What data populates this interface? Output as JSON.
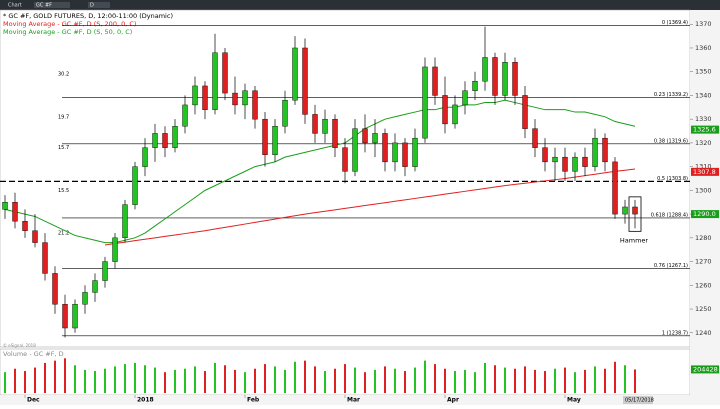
{
  "toolbar": {
    "tab": "Chart",
    "symbol": "GC #F",
    "interval": "D"
  },
  "chart_data": {
    "type": "candlestick",
    "title": "* GC #F, GOLD FUTURES, D, 12:00-11:00 (Dynamic)",
    "ylim": [
      1234,
      1376
    ],
    "yticks": [
      1240,
      1250,
      1260,
      1270,
      1280,
      1290,
      1300,
      1310,
      1320,
      1330,
      1340,
      1350,
      1360,
      1370
    ],
    "candles": [
      [
        1292,
        1298,
        1288,
        1295
      ],
      [
        1295,
        1299,
        1284,
        1287
      ],
      [
        1287,
        1292,
        1280,
        1283
      ],
      [
        1283,
        1290,
        1276,
        1278
      ],
      [
        1278,
        1282,
        1262,
        1265
      ],
      [
        1265,
        1268,
        1248,
        1252
      ],
      [
        1252,
        1256,
        1238,
        1242
      ],
      [
        1242,
        1254,
        1240,
        1252
      ],
      [
        1252,
        1260,
        1248,
        1257
      ],
      [
        1257,
        1265,
        1253,
        1262
      ],
      [
        1262,
        1272,
        1259,
        1270
      ],
      [
        1270,
        1282,
        1267,
        1280
      ],
      [
        1280,
        1296,
        1278,
        1294
      ],
      [
        1294,
        1312,
        1292,
        1310
      ],
      [
        1310,
        1322,
        1306,
        1318
      ],
      [
        1318,
        1328,
        1312,
        1324
      ],
      [
        1324,
        1327,
        1314,
        1318
      ],
      [
        1318,
        1330,
        1316,
        1327
      ],
      [
        1327,
        1340,
        1324,
        1336
      ],
      [
        1336,
        1348,
        1332,
        1344
      ],
      [
        1344,
        1346,
        1330,
        1334
      ],
      [
        1334,
        1366,
        1332,
        1358
      ],
      [
        1358,
        1360,
        1338,
        1341
      ],
      [
        1341,
        1348,
        1332,
        1336
      ],
      [
        1336,
        1345,
        1330,
        1342
      ],
      [
        1342,
        1344,
        1326,
        1330
      ],
      [
        1330,
        1333,
        1310,
        1315
      ],
      [
        1315,
        1330,
        1312,
        1327
      ],
      [
        1327,
        1342,
        1324,
        1338
      ],
      [
        1338,
        1365,
        1336,
        1360
      ],
      [
        1360,
        1364,
        1328,
        1332
      ],
      [
        1332,
        1336,
        1320,
        1324
      ],
      [
        1324,
        1334,
        1320,
        1330
      ],
      [
        1330,
        1332,
        1314,
        1318
      ],
      [
        1318,
        1322,
        1303,
        1308
      ],
      [
        1308,
        1330,
        1306,
        1326
      ],
      [
        1326,
        1332,
        1316,
        1320
      ],
      [
        1320,
        1330,
        1314,
        1324
      ],
      [
        1324,
        1326,
        1308,
        1312
      ],
      [
        1312,
        1324,
        1308,
        1320
      ],
      [
        1320,
        1322,
        1306,
        1310
      ],
      [
        1310,
        1326,
        1308,
        1322
      ],
      [
        1322,
        1356,
        1320,
        1352
      ],
      [
        1352,
        1356,
        1336,
        1340
      ],
      [
        1340,
        1348,
        1324,
        1328
      ],
      [
        1328,
        1340,
        1326,
        1336
      ],
      [
        1336,
        1346,
        1332,
        1342
      ],
      [
        1342,
        1350,
        1338,
        1346
      ],
      [
        1346,
        1369,
        1342,
        1356
      ],
      [
        1356,
        1358,
        1336,
        1340
      ],
      [
        1340,
        1358,
        1338,
        1354
      ],
      [
        1354,
        1356,
        1336,
        1340
      ],
      [
        1340,
        1344,
        1322,
        1326
      ],
      [
        1326,
        1330,
        1314,
        1318
      ],
      [
        1318,
        1322,
        1308,
        1312
      ],
      [
        1312,
        1318,
        1304,
        1314
      ],
      [
        1314,
        1318,
        1304,
        1308
      ],
      [
        1308,
        1316,
        1304,
        1314
      ],
      [
        1314,
        1318,
        1306,
        1310
      ],
      [
        1310,
        1326,
        1308,
        1322
      ],
      [
        1322,
        1324,
        1308,
        1312
      ],
      [
        1312,
        1314,
        1288,
        1290
      ],
      [
        1290,
        1296,
        1286,
        1293
      ],
      [
        1293,
        1296,
        1284,
        1290
      ]
    ],
    "series": [
      {
        "name": "Moving Average - GC #F, D (S, 200, 0, C)",
        "color": "#e02020",
        "values": [
          null,
          null,
          null,
          null,
          null,
          null,
          null,
          null,
          null,
          null,
          1277,
          1277.6,
          1278.2,
          1278.8,
          1279.4,
          1280,
          1280.6,
          1281.2,
          1281.8,
          1282.4,
          1283,
          1283.7,
          1284.4,
          1285.1,
          1285.8,
          1286.5,
          1287.2,
          1287.9,
          1288.6,
          1289.3,
          1290,
          1290.6,
          1291.2,
          1291.8,
          1292.4,
          1293,
          1293.6,
          1294.2,
          1294.8,
          1295.4,
          1296,
          1296.6,
          1297.2,
          1297.8,
          1298.4,
          1299,
          1299.6,
          1300.2,
          1300.8,
          1301.4,
          1302,
          1302.5,
          1303,
          1303.5,
          1304,
          1304.5,
          1305,
          1305.6,
          1306.2,
          1306.8,
          1307.4,
          1308,
          1308.5,
          1309
        ]
      },
      {
        "name": "Moving Average - GC #F, D (S, 50, 0, C)",
        "color": "#1a9e1a",
        "values": [
          1292,
          1291,
          1290,
          1289,
          1287,
          1285,
          1283,
          1281,
          1280,
          1279,
          1278,
          1278,
          1279,
          1280,
          1282,
          1285,
          1288,
          1291,
          1294,
          1297,
          1300,
          1302,
          1304,
          1306,
          1308,
          1310,
          1311,
          1312,
          1314,
          1315,
          1316,
          1317,
          1318,
          1319,
          1320,
          1323,
          1326,
          1328,
          1330,
          1331,
          1332,
          1333,
          1334,
          1334,
          1335,
          1335,
          1336,
          1336,
          1337,
          1337,
          1338,
          1337,
          1336,
          1335,
          1334,
          1334,
          1334,
          1333,
          1333,
          1332,
          1331,
          1329,
          1328,
          1327
        ]
      }
    ],
    "levels": [
      {
        "label": "0 (1369.4)",
        "value": 1369.4
      },
      {
        "label": "0.23 (1339.2)",
        "value": 1339.2
      },
      {
        "label": "0.38 (1319.6)",
        "value": 1319.6
      },
      {
        "label": "0.5 (1303.8)",
        "value": 1303.8,
        "dashed": true
      },
      {
        "label": "0.618 (1288.4)",
        "value": 1288.4
      },
      {
        "label": "0.76 (1267.1)",
        "value": 1267.1
      },
      {
        "label": "1 (1238.7)",
        "value": 1238.7
      }
    ],
    "left_labels": [
      {
        "label": "30.2",
        "value": 1349
      },
      {
        "label": "19.7",
        "value": 1331
      },
      {
        "label": "15.7",
        "value": 1318
      },
      {
        "label": "15.5",
        "value": 1300
      },
      {
        "label": "21.2",
        "value": 1282
      }
    ],
    "price_tags": [
      {
        "label": "1325.6",
        "value": 1325.6,
        "color": "#1a9e1a"
      },
      {
        "label": "1307.8",
        "value": 1307.8,
        "color": "#e02020"
      },
      {
        "label": "1290.0",
        "value": 1290,
        "color": "#1a9e1a"
      }
    ],
    "annotation": {
      "label": "Hammer",
      "candle": 63
    },
    "x_labels": [
      {
        "label": "Dec",
        "index": 2
      },
      {
        "label": "2018",
        "index": 13
      },
      {
        "label": "Feb",
        "index": 24
      },
      {
        "label": "Mar",
        "index": 34
      },
      {
        "label": "Apr",
        "index": 44
      },
      {
        "label": "May",
        "index": 56
      }
    ],
    "date_tag": "05/17/2018",
    "copyright": "© eSignal, 2018",
    "volume": {
      "title": "Volume - GC #F, D",
      "vlim": [
        0,
        320
      ],
      "tag": "204428",
      "values": [
        180,
        210,
        190,
        220,
        260,
        280,
        300,
        240,
        200,
        190,
        210,
        230,
        250,
        260,
        240,
        220,
        180,
        200,
        210,
        230,
        190,
        260,
        240,
        200,
        180,
        210,
        250,
        230,
        200,
        270,
        280,
        230,
        190,
        210,
        250,
        220,
        180,
        200,
        230,
        210,
        190,
        220,
        280,
        250,
        210,
        190,
        200,
        180,
        260,
        240,
        220,
        210,
        230,
        200,
        190,
        210,
        220,
        180,
        200,
        230,
        210,
        270,
        240,
        204
      ]
    }
  }
}
